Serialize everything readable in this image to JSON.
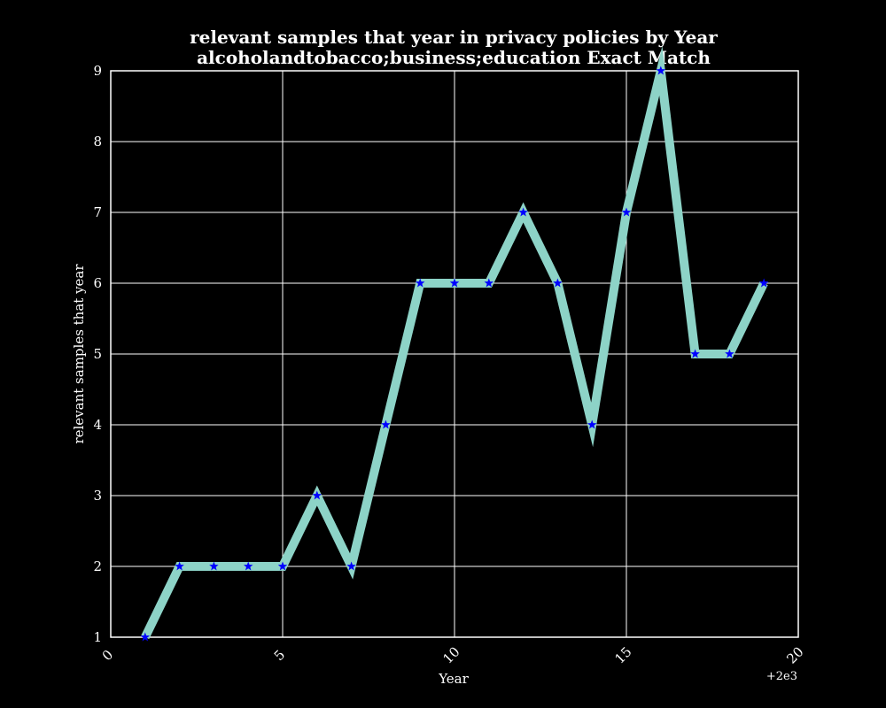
{
  "chart_data": {
    "type": "line",
    "title_line1": "relevant samples that year in privacy policies by Year",
    "title_line2": "alcoholandtobacco;business;education Exact Match",
    "xlabel": "Year",
    "ylabel": "relevant samples that year",
    "x_offset_label": "+2e3",
    "xlim": [
      0,
      20
    ],
    "ylim": [
      1,
      9
    ],
    "x_ticks": [
      0,
      5,
      10,
      15,
      20
    ],
    "y_ticks": [
      1,
      2,
      3,
      4,
      5,
      6,
      7,
      8,
      9
    ],
    "grid": true,
    "colors": {
      "background": "#000000",
      "line": "#8dd3c7",
      "marker": "#0000ff",
      "text": "#ffffff",
      "grid": "#ffffff"
    },
    "series": [
      {
        "x": [
          1,
          2,
          3,
          4,
          5,
          6,
          7,
          8,
          9,
          10,
          11,
          12,
          13,
          14,
          15,
          16,
          17,
          18,
          19
        ],
        "values": [
          1,
          2,
          2,
          2,
          2,
          3,
          2,
          4,
          6,
          6,
          6,
          7,
          6,
          4,
          7,
          9,
          5,
          5,
          6
        ]
      }
    ]
  }
}
